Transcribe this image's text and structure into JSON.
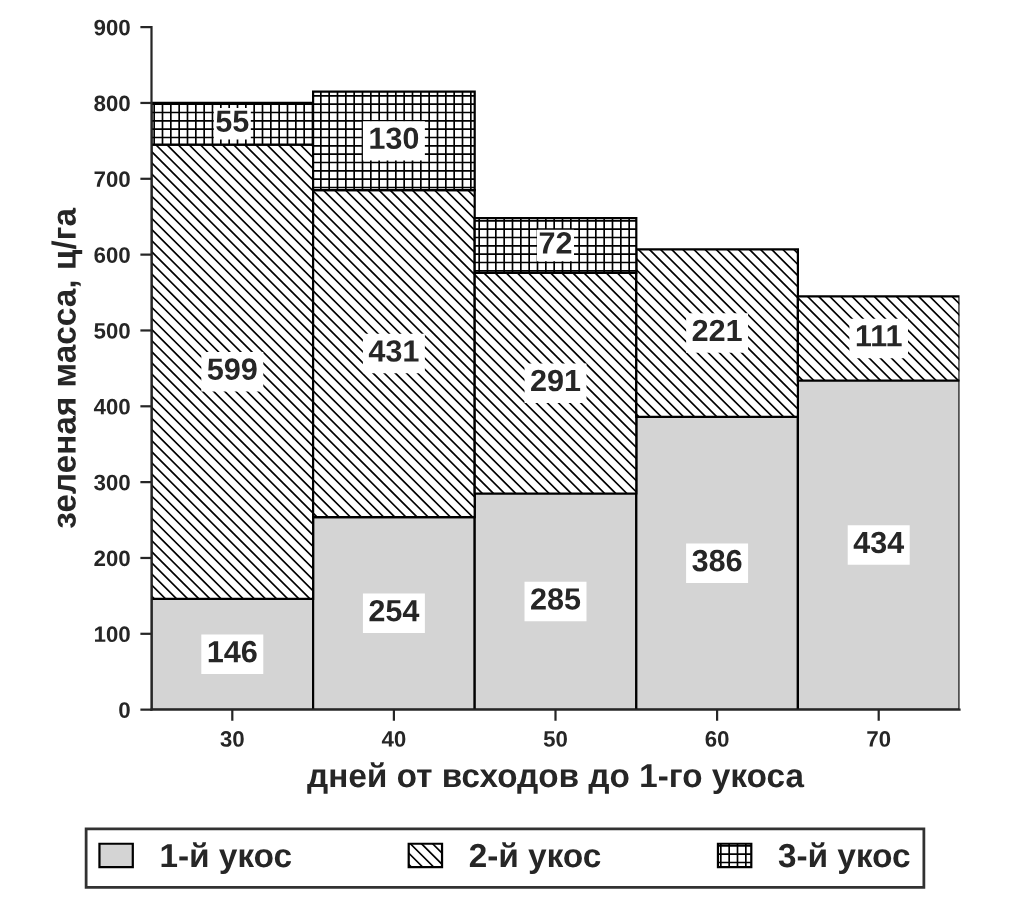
{
  "chart_data": {
    "type": "bar",
    "stacked": true,
    "xlabel": "дней от всходов до 1-го укоса",
    "ylabel": "зеленая масса, ц/га",
    "categories": [
      "30",
      "40",
      "50",
      "60",
      "70"
    ],
    "series": [
      {
        "name": "1-й укос",
        "color": "#d4d4d4",
        "values": [
          146,
          254,
          285,
          386,
          434
        ]
      },
      {
        "name": "2-й укос",
        "color": "#000000",
        "values": [
          599,
          431,
          291,
          221,
          111
        ]
      },
      {
        "name": "3-й укос",
        "color": "#000000",
        "values": [
          55,
          130,
          72,
          null,
          null
        ]
      }
    ],
    "ylim": [
      0,
      900
    ],
    "yticks": [
      0,
      100,
      200,
      300,
      400,
      500,
      600,
      700,
      800,
      900
    ],
    "data_labels": true,
    "legend": "bottom",
    "grid": false
  }
}
